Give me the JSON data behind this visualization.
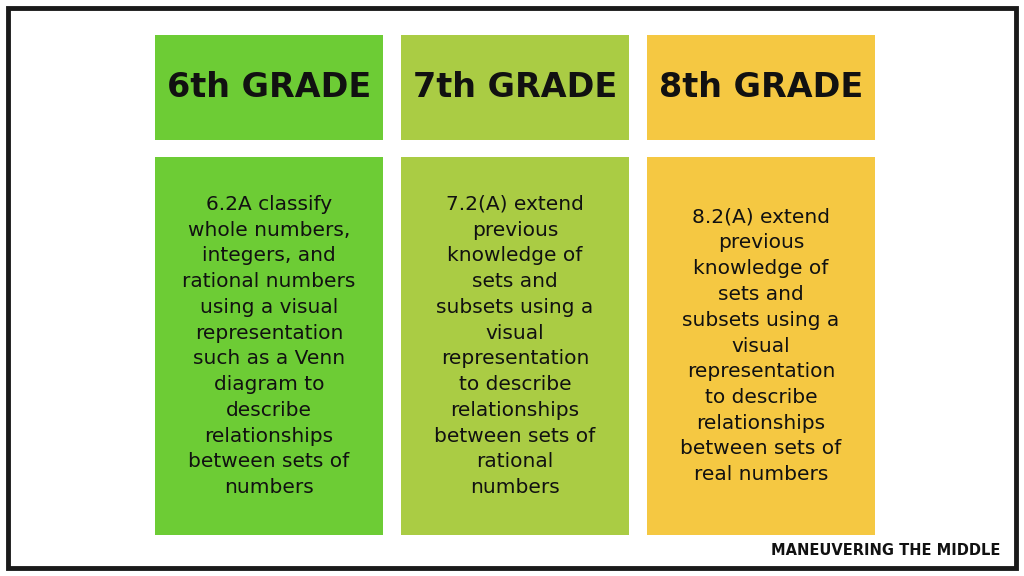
{
  "background_color": "#ffffff",
  "border_color": "#1a1a1a",
  "columns": [
    {
      "header": "6th GRADE",
      "header_bg": "#6dcc35",
      "body_bg": "#6dcc35",
      "body_text": "6.2A classify\nwhole numbers,\nintegers, and\nrational numbers\nusing a visual\nrepresentation\nsuch as a Venn\ndiagram to\ndescribe\nrelationships\nbetween sets of\nnumbers"
    },
    {
      "header": "7th GRADE",
      "header_bg": "#aacc44",
      "body_bg": "#aacc44",
      "body_text": "7.2(A) extend\nprevious\nknowledge of\nsets and\nsubsets using a\nvisual\nrepresentation\nto describe\nrelationships\nbetween sets of\nrational\nnumbers"
    },
    {
      "header": "8th GRADE",
      "header_bg": "#f5c842",
      "body_bg": "#f5c842",
      "body_text": "8.2(A) extend\nprevious\nknowledge of\nsets and\nsubsets using a\nvisual\nrepresentation\nto describe\nrelationships\nbetween sets of\nreal numbers"
    }
  ],
  "watermark": "MANEUVERING THE MIDDLE",
  "text_color": "#111111",
  "header_fontsize": 24,
  "body_fontsize": 14.5,
  "watermark_fontsize": 10.5
}
